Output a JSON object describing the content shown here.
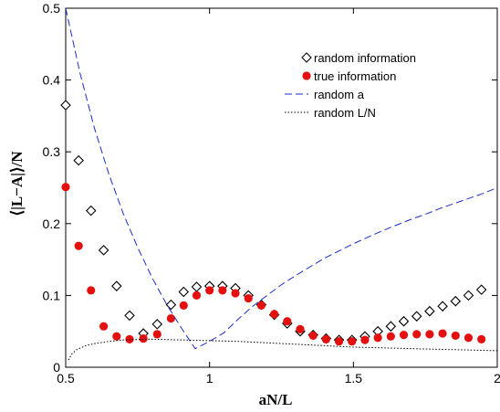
{
  "chart_data": {
    "type": "scatter",
    "xlabel": "aN/L",
    "ylabel": "⟨|L−A|⟩/N",
    "xlim": [
      0.5,
      2.0
    ],
    "ylim": [
      0,
      0.5
    ],
    "xticks": [
      0.5,
      1,
      1.5,
      2
    ],
    "xtick_labels": [
      "0.5",
      "1",
      "1.5",
      "2"
    ],
    "yticks": [
      0,
      0.1,
      0.2,
      0.3,
      0.4,
      0.5
    ],
    "ytick_labels": [
      "0",
      "0.1",
      "0.2",
      "0.3",
      "0.4",
      "0.5"
    ],
    "legend_position": "top-right",
    "series": [
      {
        "name": "random information",
        "kind": "points",
        "marker": "diamond-open",
        "color": "#000000",
        "x": [
          0.5,
          0.545,
          0.588,
          0.632,
          0.677,
          0.722,
          0.77,
          0.818,
          0.866,
          0.91,
          0.955,
          1.0,
          1.045,
          1.09,
          1.135,
          1.18,
          1.225,
          1.27,
          1.315,
          1.36,
          1.405,
          1.45,
          1.495,
          1.54,
          1.585,
          1.63,
          1.675,
          1.72,
          1.765,
          1.81,
          1.855,
          1.9,
          1.945
        ],
        "y": [
          0.365,
          0.288,
          0.218,
          0.163,
          0.113,
          0.072,
          0.047,
          0.06,
          0.087,
          0.105,
          0.112,
          0.113,
          0.113,
          0.11,
          0.1,
          0.087,
          0.073,
          0.061,
          0.05,
          0.045,
          0.04,
          0.038,
          0.038,
          0.043,
          0.05,
          0.057,
          0.064,
          0.071,
          0.078,
          0.085,
          0.092,
          0.1,
          0.108
        ]
      },
      {
        "name": "true information",
        "kind": "points",
        "marker": "circle-filled",
        "color": "#e41010",
        "x": [
          0.5,
          0.545,
          0.588,
          0.632,
          0.677,
          0.722,
          0.77,
          0.818,
          0.866,
          0.91,
          0.955,
          1.0,
          1.045,
          1.09,
          1.135,
          1.18,
          1.225,
          1.27,
          1.315,
          1.36,
          1.405,
          1.45,
          1.495,
          1.54,
          1.585,
          1.63,
          1.675,
          1.72,
          1.765,
          1.81,
          1.855,
          1.9,
          1.945
        ],
        "y": [
          0.251,
          0.169,
          0.107,
          0.057,
          0.043,
          0.039,
          0.04,
          0.046,
          0.068,
          0.086,
          0.1,
          0.107,
          0.107,
          0.103,
          0.096,
          0.086,
          0.074,
          0.064,
          0.053,
          0.044,
          0.039,
          0.036,
          0.036,
          0.038,
          0.041,
          0.043,
          0.045,
          0.046,
          0.046,
          0.047,
          0.044,
          0.041,
          0.039
        ]
      },
      {
        "name": "random a",
        "kind": "line",
        "style": "dashed",
        "color": "#1a2fc8",
        "x": [
          0.5,
          0.55,
          0.6,
          0.65,
          0.7,
          0.75,
          0.8,
          0.85,
          0.9,
          0.95,
          1.0,
          1.05,
          1.1,
          1.15,
          1.2,
          1.25,
          1.3,
          1.35,
          1.4,
          1.45,
          1.5,
          1.55,
          1.6,
          1.65,
          1.7,
          1.75,
          1.8,
          1.85,
          1.9,
          1.95,
          2.0
        ],
        "y": [
          0.5,
          0.409,
          0.333,
          0.269,
          0.214,
          0.167,
          0.125,
          0.088,
          0.056,
          0.026,
          0.036,
          0.048,
          0.067,
          0.085,
          0.1,
          0.115,
          0.128,
          0.14,
          0.152,
          0.162,
          0.172,
          0.181,
          0.19,
          0.198,
          0.206,
          0.213,
          0.221,
          0.228,
          0.235,
          0.242,
          0.25
        ]
      },
      {
        "name": "random L/N",
        "kind": "line",
        "style": "dotted",
        "color": "#000000",
        "x": [
          0.51,
          0.52,
          0.54,
          0.57,
          0.6,
          0.65,
          0.7,
          0.8,
          0.9,
          1.0,
          1.1,
          1.2,
          1.3,
          1.4,
          1.5,
          1.6,
          1.7,
          1.8,
          1.9,
          2.0
        ],
        "y": [
          0.01,
          0.018,
          0.025,
          0.03,
          0.033,
          0.036,
          0.038,
          0.039,
          0.038,
          0.037,
          0.036,
          0.034,
          0.032,
          0.03,
          0.028,
          0.027,
          0.026,
          0.025,
          0.024,
          0.023
        ]
      }
    ]
  }
}
